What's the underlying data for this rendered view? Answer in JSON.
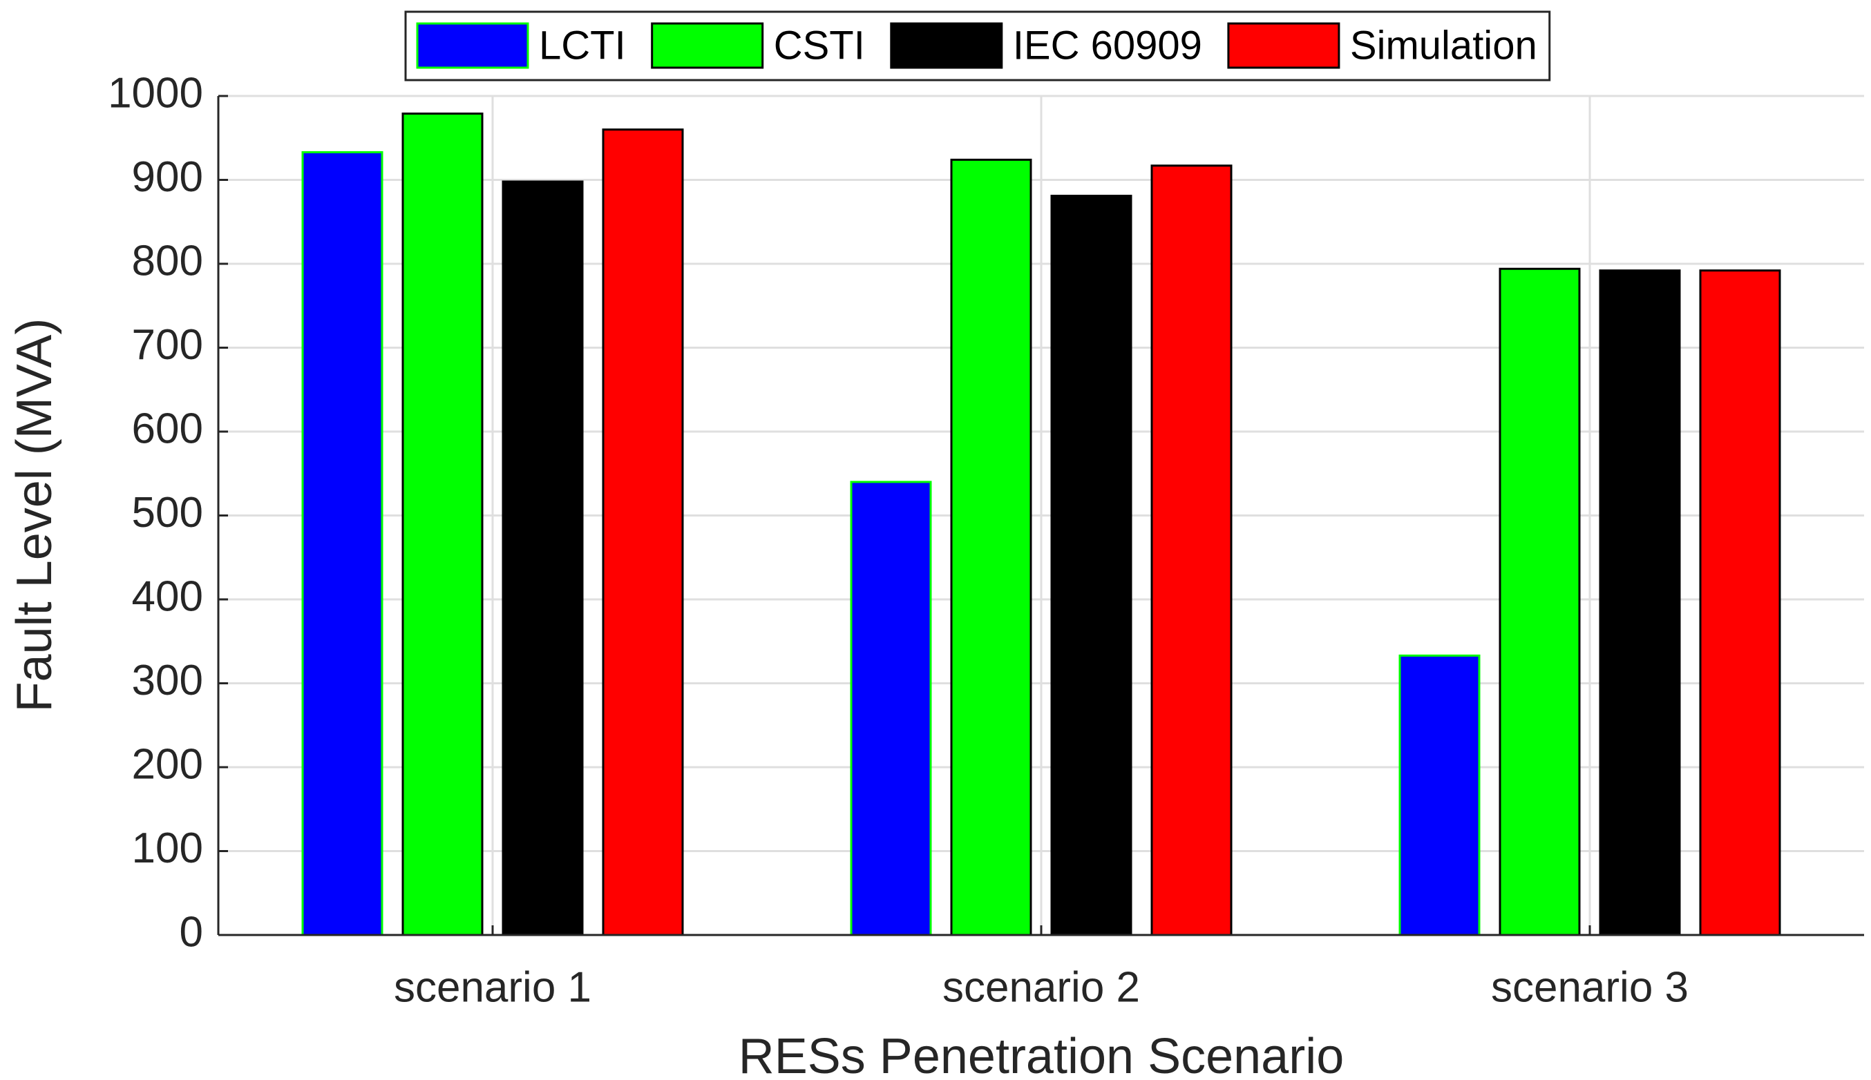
{
  "chart_data": {
    "type": "bar",
    "xlabel": "RESs Penetration Scenario",
    "ylabel": "Fault Level (MVA)",
    "categories": [
      "scenario 1",
      "scenario 2",
      "scenario 3"
    ],
    "series": [
      {
        "name": "LCTI",
        "color": "#0000ff",
        "edgecolor": "#00ff00",
        "values": [
          933,
          540,
          333
        ]
      },
      {
        "name": "CSTI",
        "color": "#00ff00",
        "edgecolor": "#000000",
        "values": [
          979,
          924,
          794
        ]
      },
      {
        "name": "IEC 60909",
        "color": "#000000",
        "edgecolor": "#000000",
        "values": [
          898,
          881,
          792
        ]
      },
      {
        "name": "Simulation",
        "color": "#ff0000",
        "edgecolor": "#000000",
        "values": [
          960,
          917,
          792
        ]
      }
    ],
    "ylim": [
      0,
      1000
    ],
    "yticks": [
      0,
      100,
      200,
      300,
      400,
      500,
      600,
      700,
      800,
      900,
      1000
    ],
    "grid": true,
    "legend": "top"
  }
}
